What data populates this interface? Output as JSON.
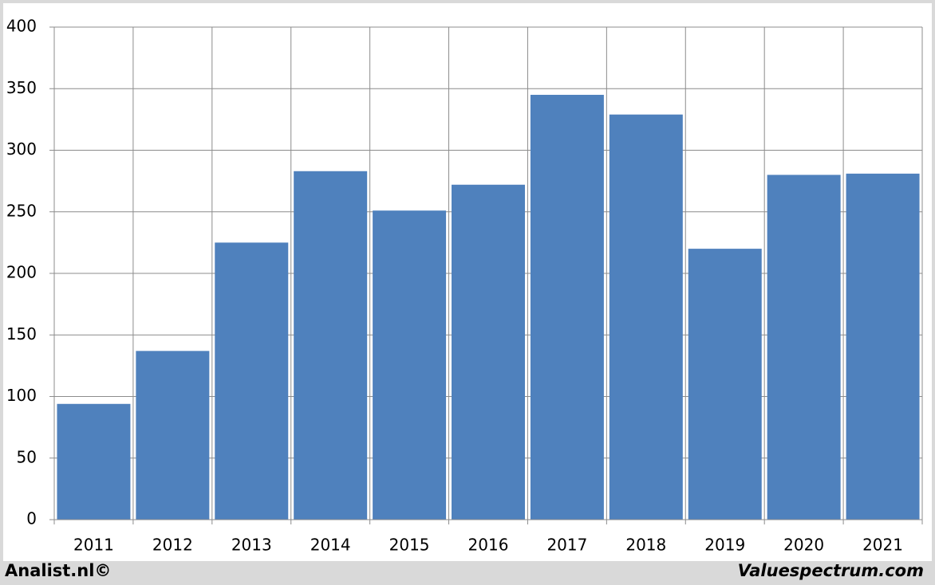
{
  "chart_data": {
    "type": "bar",
    "categories": [
      "2011",
      "2012",
      "2013",
      "2014",
      "2015",
      "2016",
      "2017",
      "2018",
      "2019",
      "2020",
      "2021"
    ],
    "values": [
      94,
      137,
      225,
      283,
      251,
      272,
      345,
      329,
      220,
      280,
      281
    ],
    "color": "#4f81bd",
    "ylim": [
      0,
      400
    ],
    "yticks": [
      0,
      50,
      100,
      150,
      200,
      250,
      300,
      350,
      400
    ],
    "grid": true,
    "footer_left": "Analist.nl©",
    "footer_right": "Valuespectrum.com"
  }
}
